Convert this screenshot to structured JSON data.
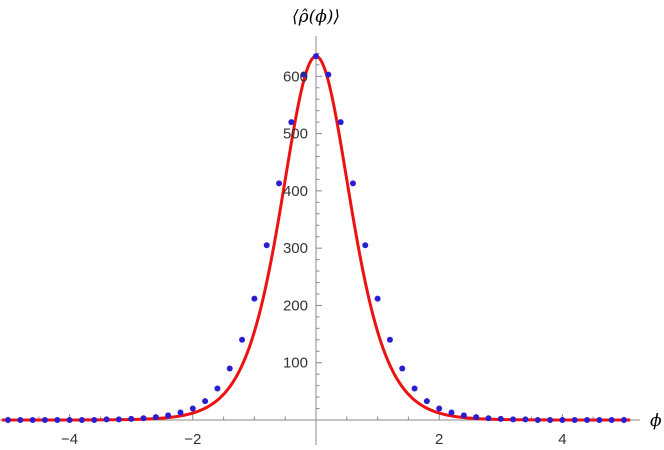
{
  "chart_data": {
    "type": "scatter",
    "title": "",
    "xlabel": "ϕ",
    "ylabel": "⟨ρ̂(ϕ)⟩",
    "xlim": [
      -5.1,
      5.2
    ],
    "ylim": [
      0,
      660
    ],
    "xticks": [
      -4,
      -2,
      2,
      4
    ],
    "xtick_labels": [
      "−4",
      "−2",
      "2",
      "4"
    ],
    "yticks": [
      100,
      200,
      300,
      400,
      500,
      600
    ],
    "ytick_labels": [
      "100",
      "200",
      "300",
      "400",
      "500",
      "600"
    ],
    "grid": false,
    "legend": "none",
    "series": [
      {
        "kind": "points",
        "color": "#2a1fd0",
        "x": [
          -5.0,
          -4.8,
          -4.6,
          -4.4,
          -4.2,
          -4.0,
          -3.8,
          -3.6,
          -3.4,
          -3.2,
          -3.0,
          -2.8,
          -2.6,
          -2.4,
          -2.2,
          -2.0,
          -1.8,
          -1.6,
          -1.4,
          -1.2,
          -1.0,
          -0.8,
          -0.6,
          -0.4,
          -0.2,
          0.0,
          0.2,
          0.4,
          0.6,
          0.8,
          1.0,
          1.2,
          1.4,
          1.6,
          1.8,
          2.0,
          2.2,
          2.4,
          2.6,
          2.8,
          3.0,
          3.2,
          3.4,
          3.6,
          3.8,
          4.0,
          4.2,
          4.4,
          4.6,
          4.8,
          5.0
        ],
        "y": [
          0,
          0,
          0,
          0,
          0,
          0,
          0,
          0,
          1,
          1,
          2,
          3,
          5,
          8,
          13,
          20,
          33,
          55,
          90,
          140,
          212,
          305,
          413,
          520,
          603,
          635,
          603,
          520,
          413,
          305,
          212,
          140,
          90,
          55,
          33,
          20,
          13,
          8,
          5,
          3,
          2,
          1,
          1,
          0,
          0,
          0,
          0,
          0,
          0,
          0,
          0
        ]
      },
      {
        "kind": "curve",
        "color": "#ee1111",
        "amplitude": 635,
        "width": 0.75,
        "x_range": [
          -5.1,
          5.1
        ]
      }
    ]
  }
}
